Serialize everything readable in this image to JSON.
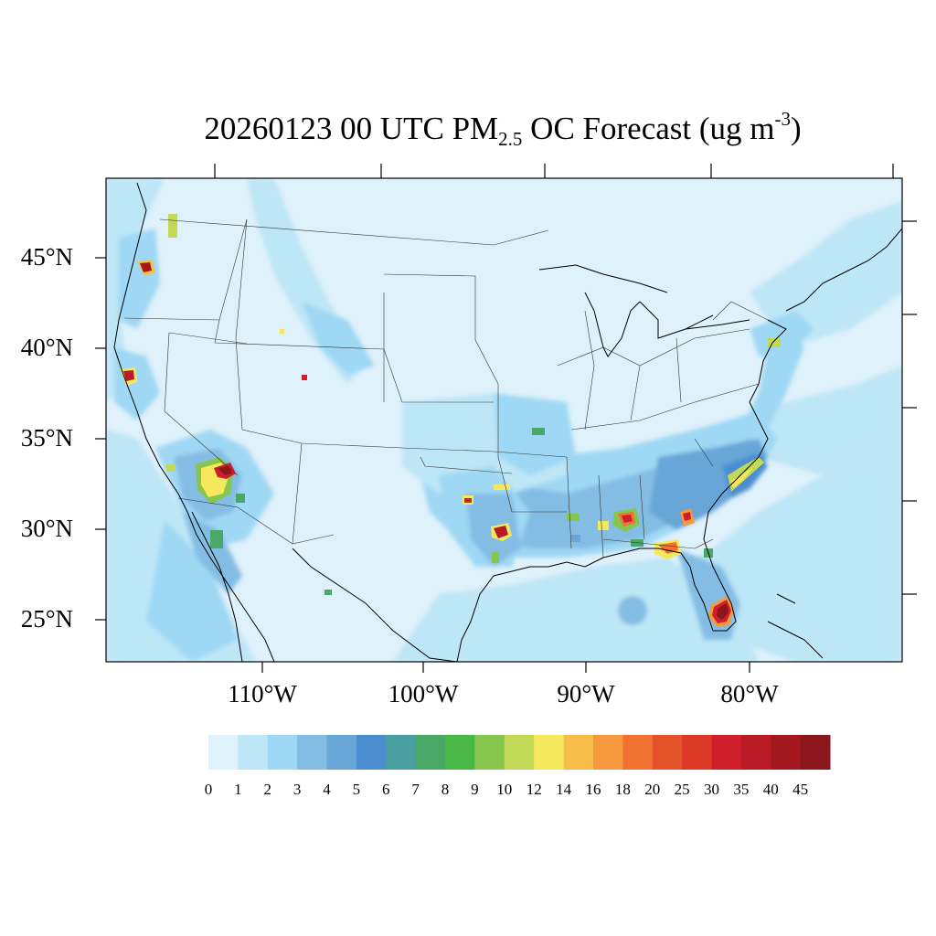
{
  "title": {
    "prefix": "20260123 00 UTC PM",
    "sub": "2.5",
    "mid": " OC Forecast (ug m",
    "sup": "-3",
    "suffix": ")"
  },
  "axes": {
    "lat_labels": [
      "45°N",
      "40°N",
      "35°N",
      "30°N",
      "25°N"
    ],
    "lon_labels": [
      "110°W",
      "100°W",
      "90°W",
      "80°W"
    ]
  },
  "colorbar": {
    "labels": [
      "0",
      "1",
      "2",
      "3",
      "4",
      "5",
      "6",
      "7",
      "8",
      "9",
      "10",
      "12",
      "14",
      "16",
      "18",
      "20",
      "25",
      "30",
      "35",
      "40",
      "45"
    ],
    "colors": [
      "#dff1fa",
      "#bde6f7",
      "#9fd8f4",
      "#84bde4",
      "#68a6d8",
      "#4b8dcf",
      "#4a9fa0",
      "#4aa866",
      "#4ab847",
      "#86c64f",
      "#c2d957",
      "#f6e85c",
      "#f7bd4b",
      "#f6993f",
      "#f27331",
      "#e5532b",
      "#dc3a27",
      "#cf1f2b",
      "#b91a26",
      "#a3181f",
      "#8b161c"
    ]
  },
  "chart_data": {
    "type": "heatmap",
    "variable": "PM2.5 OC",
    "units": "ug m-3",
    "valid_time": "20260123 00 UTC",
    "levels": [
      0,
      1,
      2,
      3,
      4,
      5,
      6,
      7,
      8,
      9,
      10,
      12,
      14,
      16,
      18,
      20,
      25,
      30,
      35,
      40,
      45
    ],
    "lat_ticks": [
      45,
      40,
      35,
      30,
      25
    ],
    "lon_ticks": [
      -110,
      -100,
      -90,
      -80
    ],
    "hotspots": [
      {
        "region": "south Florida",
        "value_range": [
          40,
          45
        ]
      },
      {
        "region": "central Arizona",
        "value_range": [
          35,
          45
        ]
      },
      {
        "region": "east Texas",
        "value_range": [
          30,
          40
        ]
      },
      {
        "region": "northern California",
        "value_range": [
          30,
          40
        ]
      },
      {
        "region": "northwest Oregon",
        "value_range": [
          25,
          35
        ]
      },
      {
        "region": "central Alabama",
        "value_range": [
          20,
          30
        ]
      },
      {
        "region": "north Florida panhandle",
        "value_range": [
          16,
          25
        ]
      },
      {
        "region": "south Georgia",
        "value_range": [
          16,
          25
        ]
      },
      {
        "region": "southeast US coastal plain",
        "value_range": [
          5,
          12
        ]
      }
    ]
  }
}
